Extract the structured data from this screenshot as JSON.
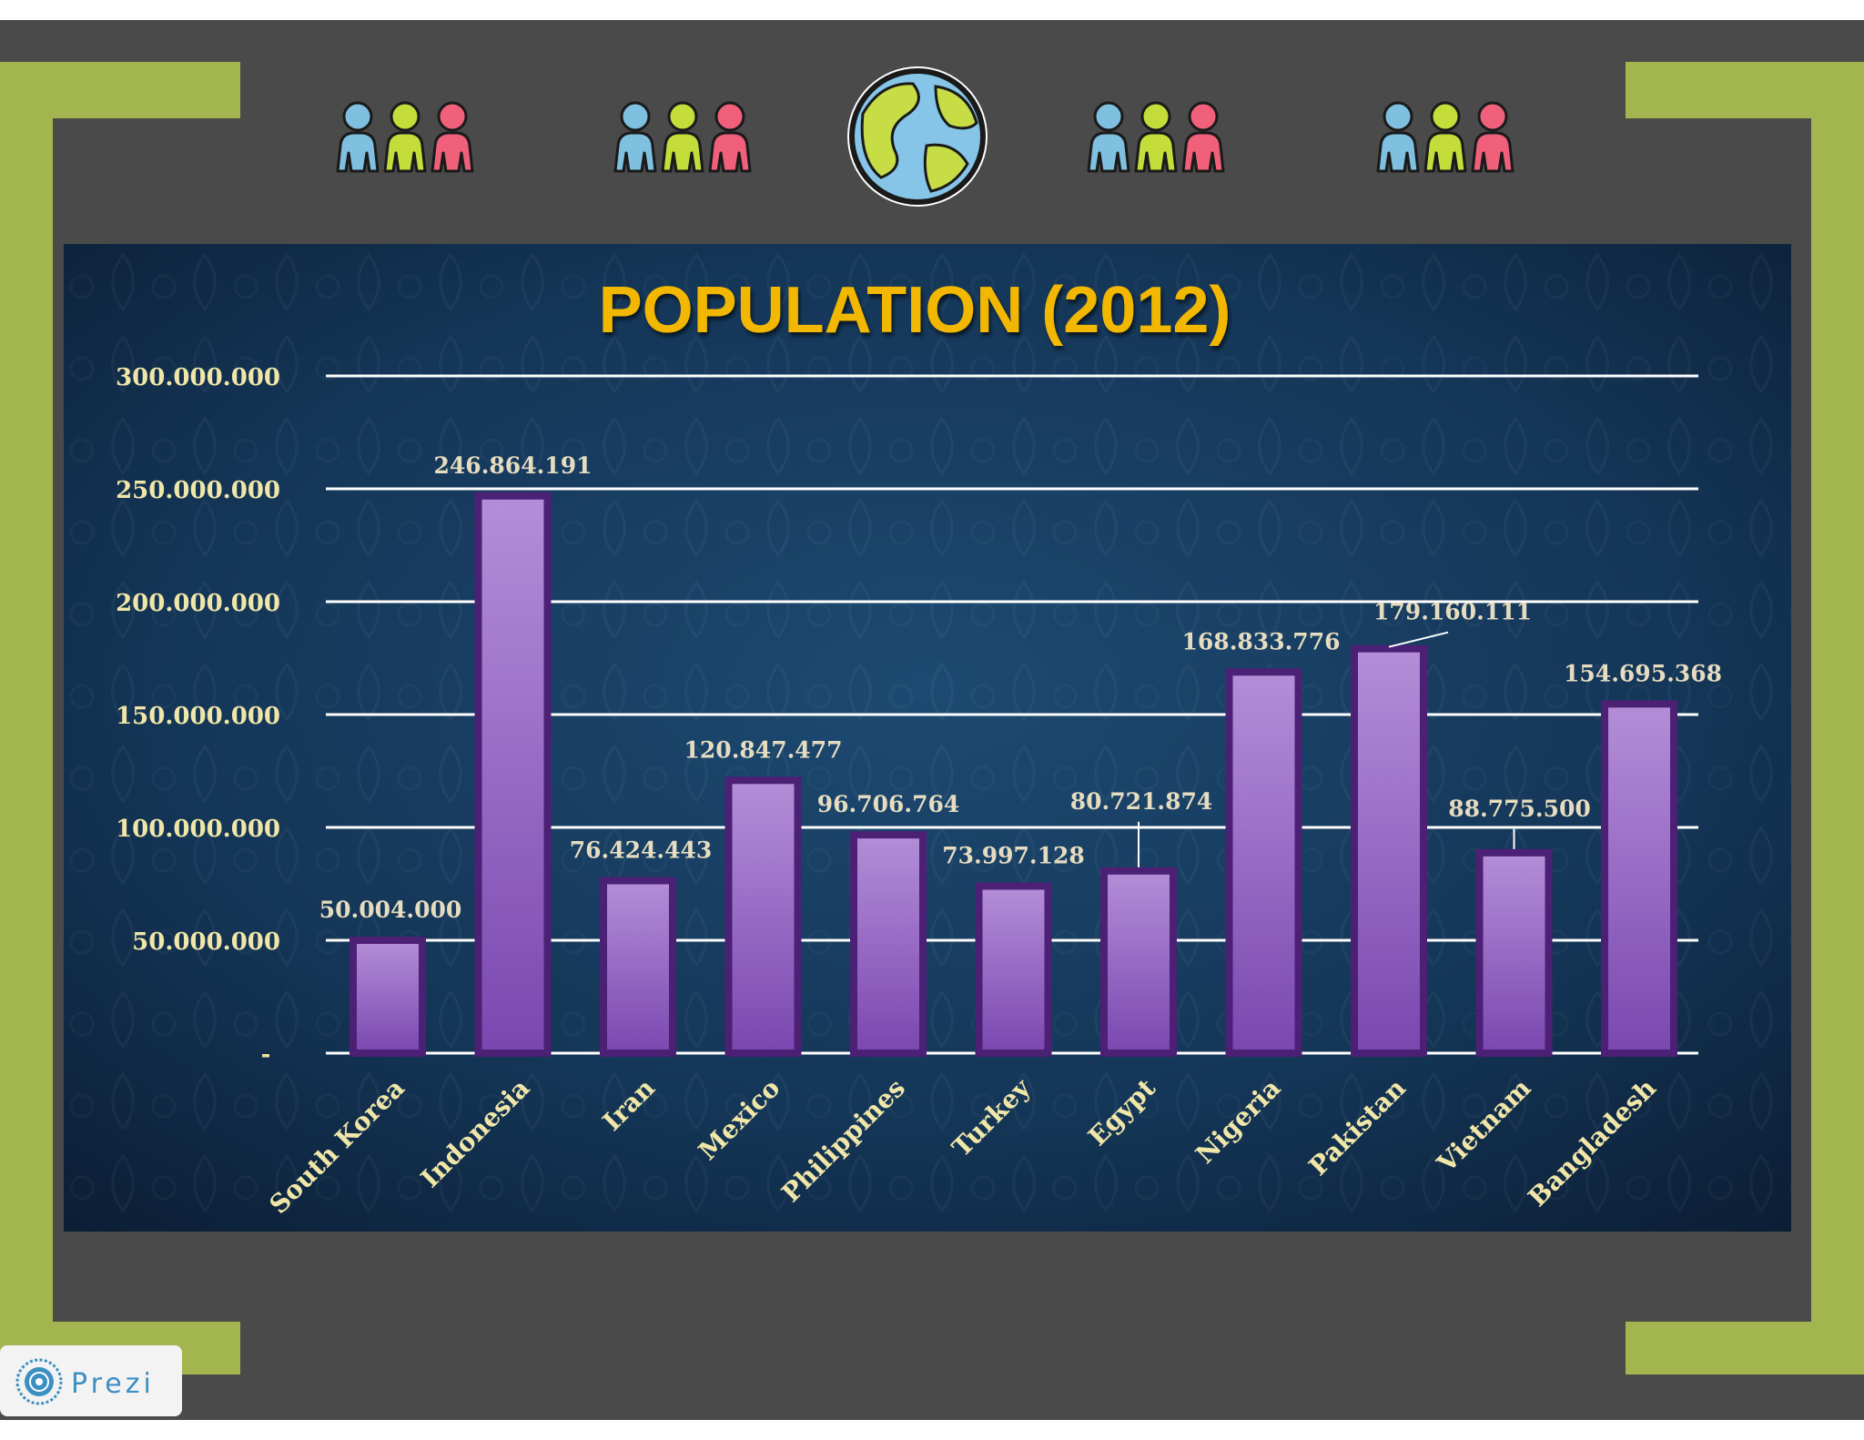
{
  "presentation": {
    "brand": "Prezi",
    "brand_logo_icon": "prezi-logo-icon"
  },
  "header_icons": [
    {
      "icon": "people-group-icon"
    },
    {
      "icon": "people-group-icon"
    },
    {
      "icon": "globe-icon"
    },
    {
      "icon": "people-group-icon"
    },
    {
      "icon": "people-group-icon"
    }
  ],
  "colors": {
    "page_background": "#4a4a4a",
    "frame_accent": "#a3b54e",
    "panel_background": "#12304f",
    "title": "#f2b705",
    "bar_top": "#b48ed8",
    "bar_bottom": "#7a47b0",
    "bar_border": "#4b2075",
    "axis_label": "#f0e6a8",
    "data_label": "#e6dcc0",
    "gridline": "#ffffff",
    "person_blue": "#7fbfe0",
    "person_green": "#c4dd3a",
    "person_pink": "#f0607a",
    "globe_land": "#c6dd45",
    "globe_water": "#86c5e8"
  },
  "chart_data": {
    "type": "bar",
    "title": "POPULATION (2012)",
    "xlabel": "",
    "ylabel": "",
    "ylim": [
      0,
      300000000
    ],
    "yticks": [
      0,
      50000000,
      100000000,
      150000000,
      200000000,
      250000000,
      300000000
    ],
    "ytick_labels": [
      "-",
      "50.000.000",
      "100.000.000",
      "150.000.000",
      "200.000.000",
      "250.000.000",
      "300.000.000"
    ],
    "grid": true,
    "legend": "none",
    "categories": [
      "South Korea",
      "Indonesia",
      "Iran",
      "Mexico",
      "Philippines",
      "Turkey",
      "Egypt",
      "Nigeria",
      "Pakistan",
      "Vietnam",
      "Bangladesh"
    ],
    "values": [
      50004000,
      246864191,
      76424443,
      120847477,
      96706764,
      73997128,
      80721874,
      168833776,
      179160111,
      88775500,
      154695368
    ],
    "value_labels": [
      "50.004.000",
      "246.864.191",
      "76.424.443",
      "120.847.477",
      "96.706.764",
      "73.997.128",
      "80.721.874",
      "168.833.776",
      "179.160.111",
      "88.775.500",
      "154.695.368"
    ]
  }
}
